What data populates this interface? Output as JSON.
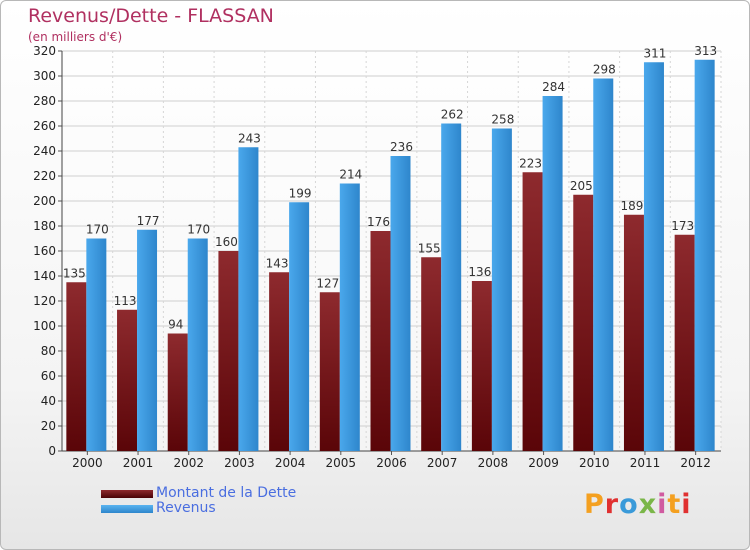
{
  "title": "Revenus/Dette - FLASSAN",
  "subtitle": "(en milliers d'€)",
  "logo_text": "Proxiti",
  "logo_colors": [
    "#f4a020",
    "#e03030",
    "#3a9ad9",
    "#7ab648",
    "#d05aa0",
    "#f4a020",
    "#e03030"
  ],
  "chart_data": {
    "type": "bar",
    "title": "Revenus/Dette - FLASSAN",
    "subtitle": "(en milliers d'€)",
    "categories": [
      "2000",
      "2001",
      "2002",
      "2003",
      "2004",
      "2005",
      "2006",
      "2007",
      "2008",
      "2009",
      "2010",
      "2011",
      "2012"
    ],
    "series": [
      {
        "name": "Montant de la Dette",
        "color": "#6b0e12",
        "values": [
          135,
          113,
          94,
          160,
          143,
          127,
          176,
          155,
          136,
          223,
          205,
          189,
          173
        ]
      },
      {
        "name": "Revenus",
        "color": "#3c9ae0",
        "values": [
          170,
          177,
          170,
          243,
          199,
          214,
          236,
          262,
          258,
          284,
          298,
          311,
          313
        ]
      }
    ],
    "ylim": [
      0,
      320
    ],
    "ytick_step": 20,
    "grid": true,
    "legend_position": "bottom-left"
  }
}
